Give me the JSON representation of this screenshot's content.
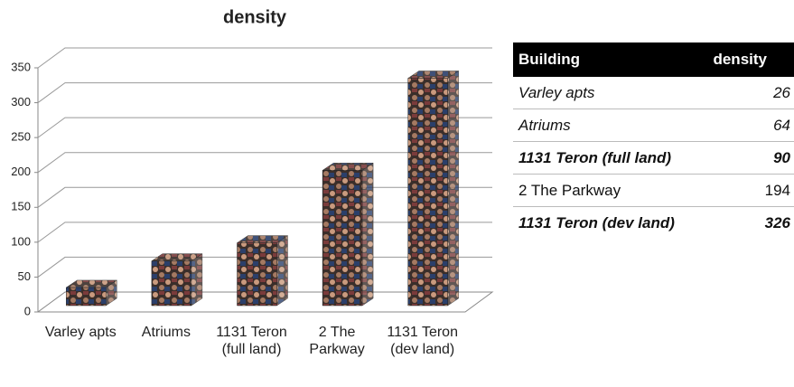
{
  "chart_data": {
    "type": "bar3d",
    "title": "density",
    "categories": [
      "Varley apts",
      "Atriums",
      "1131 Teron (full land)",
      "2 The Parkway",
      "1131 Teron (dev land)"
    ],
    "values": [
      26,
      64,
      90,
      194,
      326
    ],
    "ylim": [
      0,
      350
    ],
    "yticks": [
      0,
      50,
      100,
      150,
      200,
      250,
      300,
      350
    ],
    "grid": true
  },
  "table": {
    "columns": [
      "Building",
      "density"
    ]
  }
}
